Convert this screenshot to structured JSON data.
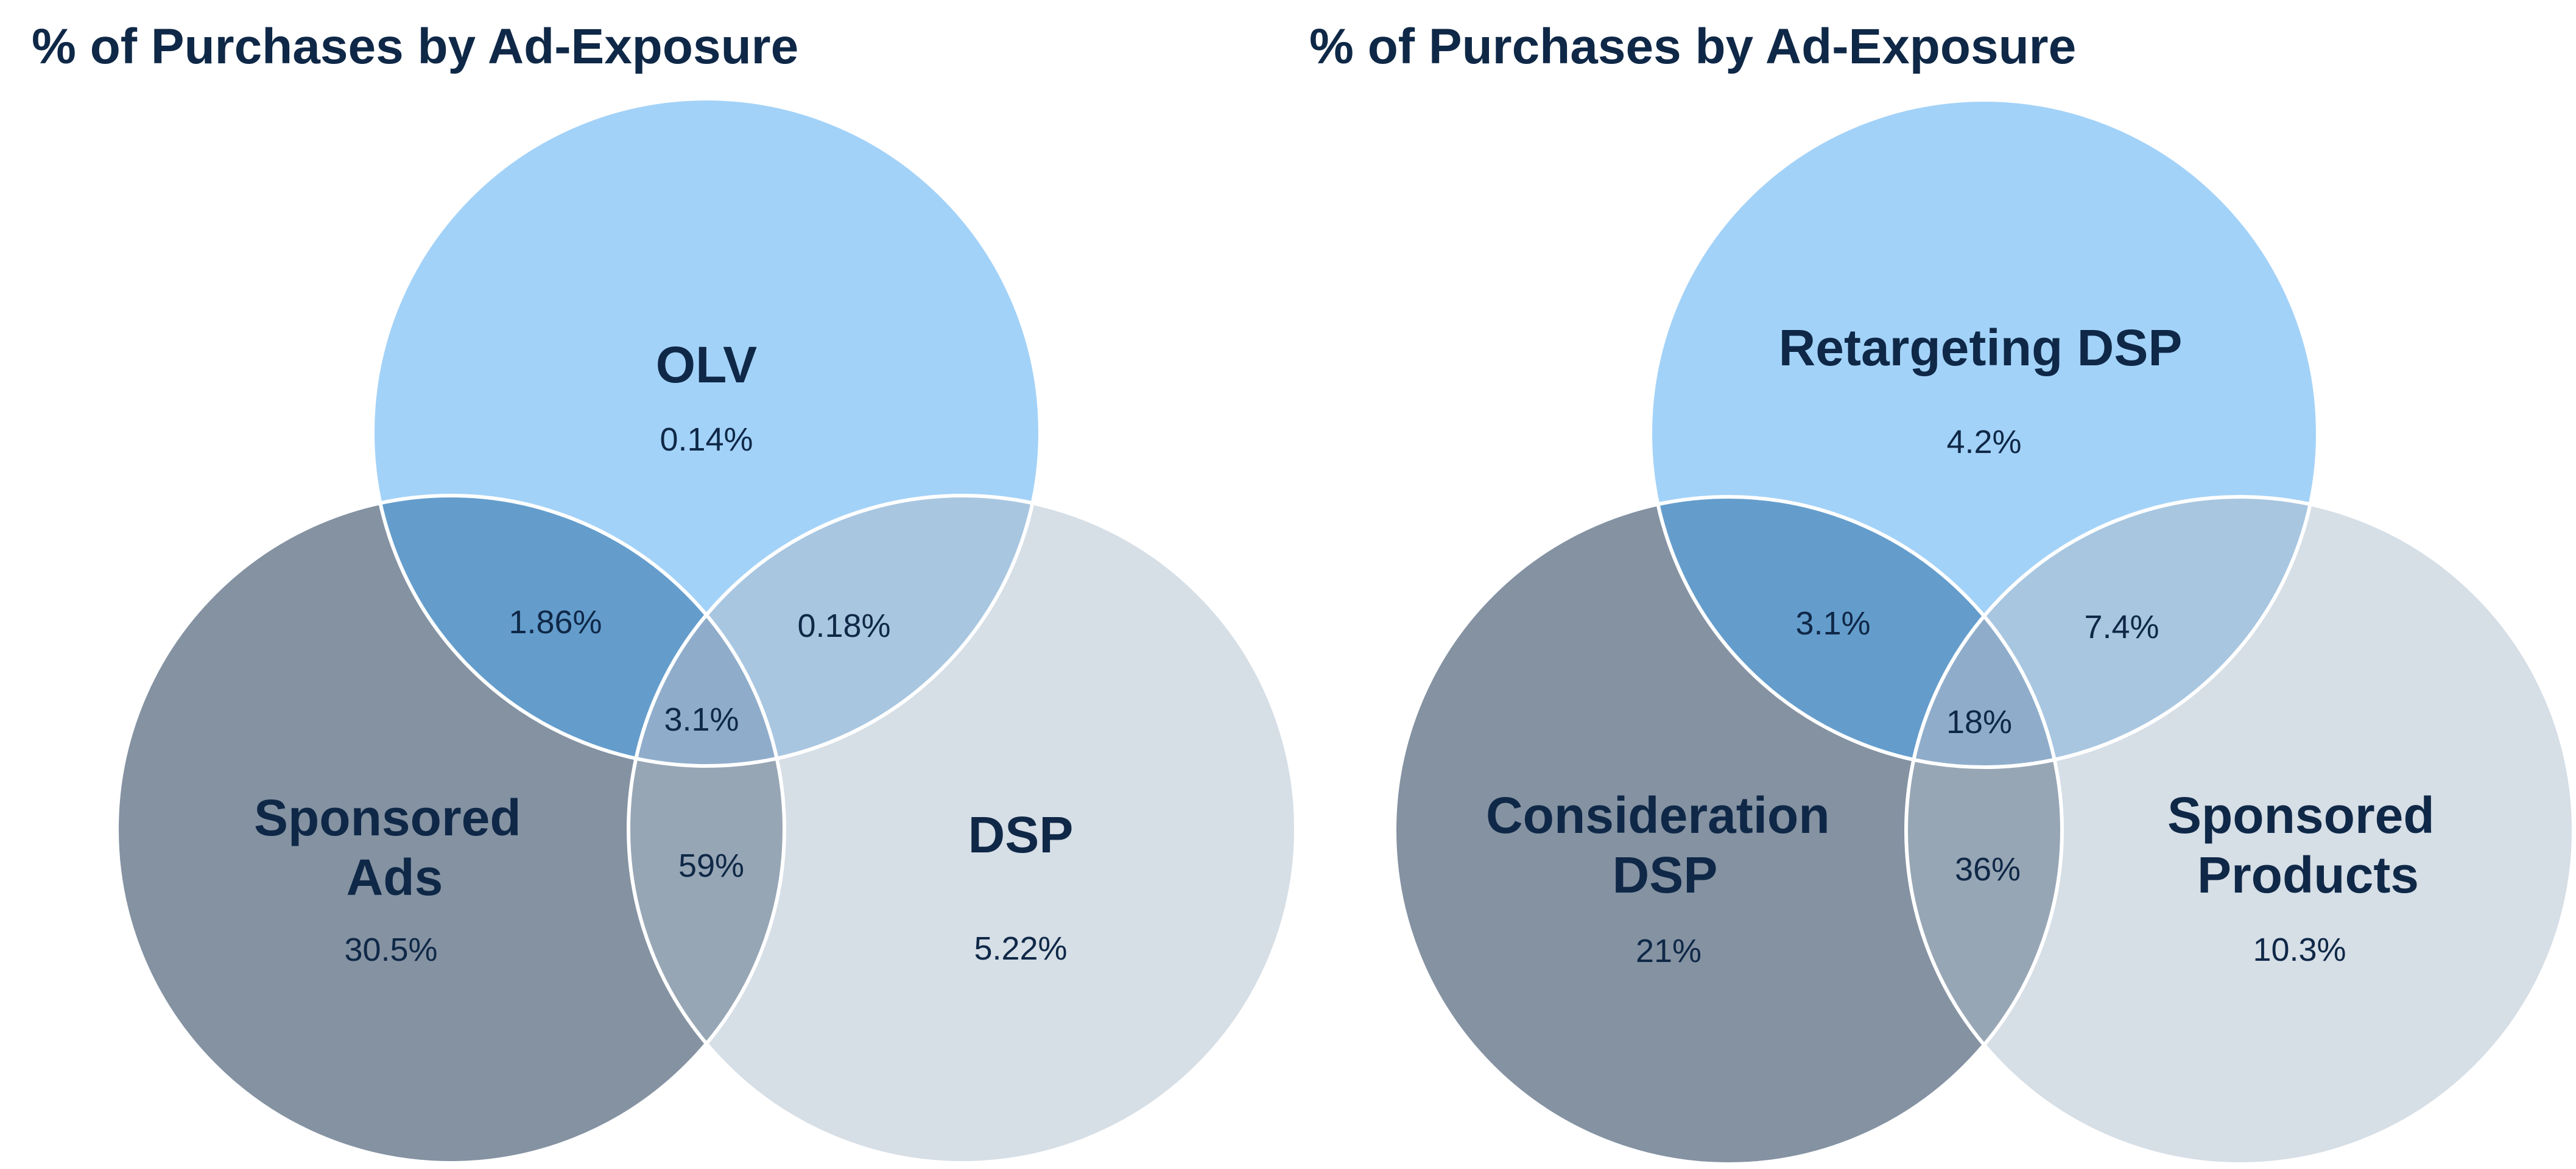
{
  "colors": {
    "top": "#a3d2f8",
    "left": "#8492a2",
    "right": "#d6dee6",
    "top_left": "#649dcc",
    "top_right": "#a8c6e0",
    "left_right": "#97a6b5",
    "center": "#8fadcb",
    "text": "#0f2847"
  },
  "diagrams": [
    {
      "title": "% of Purchases by Ad-Exposure",
      "sets": {
        "top": {
          "label_lines": [
            "OLV"
          ],
          "value": "0.14%"
        },
        "left": {
          "label_lines": [
            "Sponsored",
            "Ads"
          ],
          "value": "30.5%"
        },
        "right": {
          "label_lines": [
            "DSP"
          ],
          "value": "5.22%"
        }
      },
      "overlaps": {
        "top_left": "1.86%",
        "top_right": "0.18%",
        "left_right": "59%",
        "center": "3.1%"
      }
    },
    {
      "title": "% of Purchases by Ad-Exposure",
      "sets": {
        "top": {
          "label_lines": [
            "Retargeting DSP"
          ],
          "value": "4.2%"
        },
        "left": {
          "label_lines": [
            "Consideration",
            "DSP"
          ],
          "value": "21%"
        },
        "right": {
          "label_lines": [
            "Sponsored",
            "Products"
          ],
          "value": "10.3%"
        }
      },
      "overlaps": {
        "top_left": "3.1%",
        "top_right": "7.4%",
        "left_right": "36%",
        "center": "18%"
      }
    }
  ]
}
